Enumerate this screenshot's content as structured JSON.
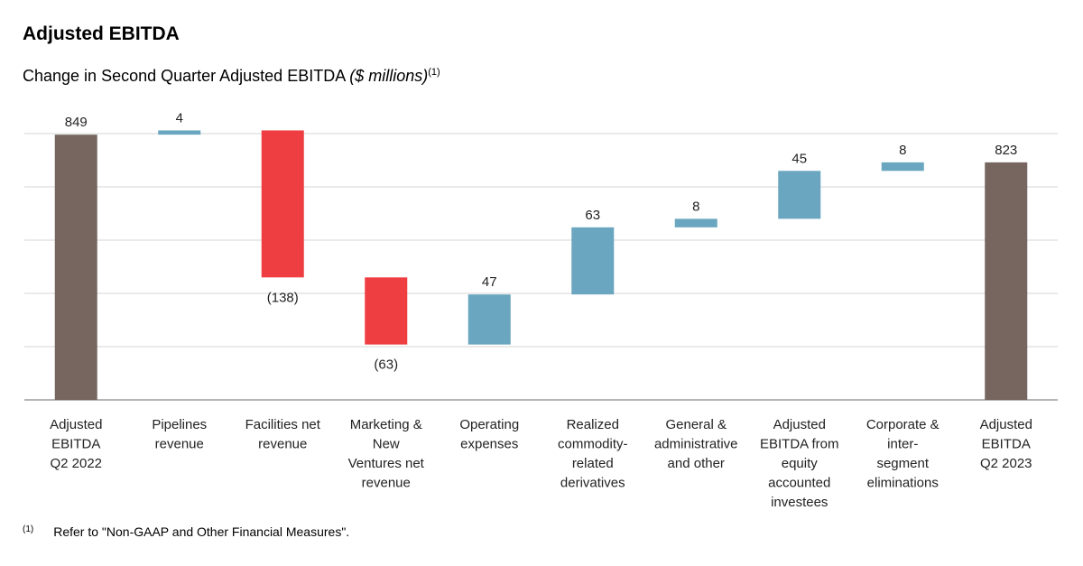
{
  "title": "Adjusted EBITDA",
  "subtitle": {
    "text": "Change in Second Quarter Adjusted EBITDA ",
    "unit": "($ millions)",
    "footnote_ref": "(1)"
  },
  "footnote": {
    "mark": "(1)",
    "text": "Refer to \"Non-GAAP and Other Financial Measures\"."
  },
  "chart_data": {
    "type": "waterfall",
    "title": "Change in Second Quarter Adjusted EBITDA ($ millions)",
    "ylim": [
      600,
      850
    ],
    "grid": true,
    "y_tick_labels_shown": false,
    "colors": {
      "total": "#76665f",
      "decrease": "#ee3e42",
      "increase": "#6aa6bf"
    },
    "categories": [
      [
        "Adjusted",
        "EBITDA",
        "Q2 2022"
      ],
      [
        "Pipelines",
        "revenue"
      ],
      [
        "Facilities net",
        "revenue"
      ],
      [
        "Marketing &",
        "New",
        "Ventures net",
        "revenue"
      ],
      [
        "Operating",
        "expenses"
      ],
      [
        "Realized",
        "commodity-",
        "related",
        "derivatives"
      ],
      [
        "General &",
        "administrative",
        "and other"
      ],
      [
        "Adjusted",
        "EBITDA from",
        "equity",
        "accounted",
        "investees"
      ],
      [
        "Corporate &",
        "inter-",
        "segment",
        "eliminations"
      ],
      [
        "Adjusted",
        "EBITDA",
        "Q2 2023"
      ]
    ],
    "bars": [
      {
        "kind": "total",
        "value": 849,
        "label": "849"
      },
      {
        "kind": "delta",
        "value": 4,
        "label": "4"
      },
      {
        "kind": "delta",
        "value": -138,
        "label": "(138)"
      },
      {
        "kind": "delta",
        "value": -63,
        "label": "(63)"
      },
      {
        "kind": "delta",
        "value": 47,
        "label": "47"
      },
      {
        "kind": "delta",
        "value": 63,
        "label": "63"
      },
      {
        "kind": "delta",
        "value": 8,
        "label": "8"
      },
      {
        "kind": "delta",
        "value": 45,
        "label": "45"
      },
      {
        "kind": "delta",
        "value": 8,
        "label": "8"
      },
      {
        "kind": "total",
        "value": 823,
        "label": "823"
      }
    ]
  }
}
